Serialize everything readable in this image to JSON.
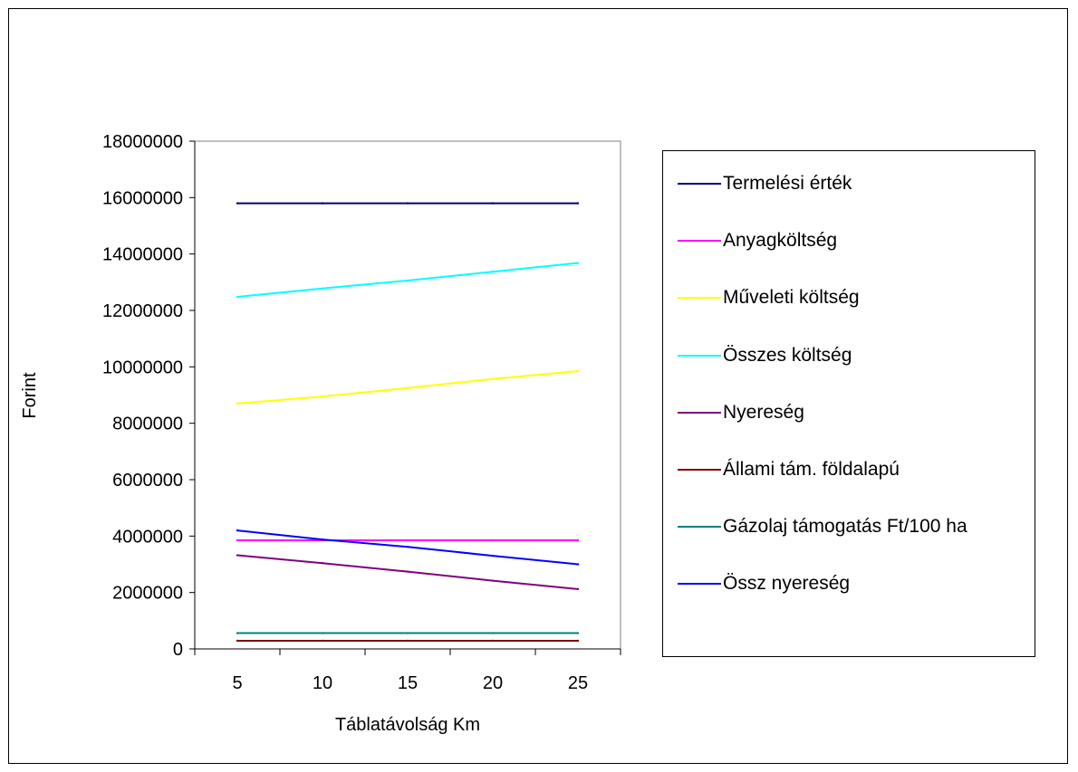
{
  "chart_data": {
    "type": "line",
    "title": "",
    "xlabel": "Táblatávolság Km",
    "ylabel": "Forint",
    "x": [
      5,
      10,
      15,
      20,
      25
    ],
    "x_tick_labels": [
      "5",
      "10",
      "15",
      "20",
      "25"
    ],
    "ylim": [
      0,
      18000000
    ],
    "y_ticks": [
      0,
      2000000,
      4000000,
      6000000,
      8000000,
      10000000,
      12000000,
      14000000,
      16000000,
      18000000
    ],
    "y_tick_labels": [
      "0",
      "2000000",
      "4000000",
      "6000000",
      "8000000",
      "10000000",
      "12000000",
      "14000000",
      "16000000",
      "18000000"
    ],
    "grid": false,
    "legend_position": "right",
    "series": [
      {
        "name": "Termelési érték",
        "color": "#000080",
        "values": [
          15800000,
          15800000,
          15800000,
          15800000,
          15800000
        ]
      },
      {
        "name": "Anyagköltség",
        "color": "#ff00ff",
        "values": [
          3850000,
          3850000,
          3850000,
          3850000,
          3850000
        ]
      },
      {
        "name": "Műveleti költség",
        "color": "#ffff00",
        "values": [
          8700000,
          8950000,
          9250000,
          9570000,
          9850000
        ]
      },
      {
        "name": "Összes költség",
        "color": "#00ffff",
        "values": [
          12480000,
          12780000,
          13060000,
          13370000,
          13680000
        ]
      },
      {
        "name": "Nyereség",
        "color": "#800080",
        "values": [
          3320000,
          3040000,
          2740000,
          2420000,
          2120000
        ]
      },
      {
        "name": "Állami tám. földalapú",
        "color": "#800000",
        "values": [
          290000,
          290000,
          290000,
          290000,
          290000
        ]
      },
      {
        "name": "Gázolaj támogatás Ft/100 ha",
        "color": "#008080",
        "values": [
          560000,
          560000,
          560000,
          560000,
          560000
        ]
      },
      {
        "name": "Össz nyereség",
        "color": "#0000ff",
        "values": [
          4200000,
          3880000,
          3620000,
          3300000,
          3000000
        ]
      }
    ]
  }
}
